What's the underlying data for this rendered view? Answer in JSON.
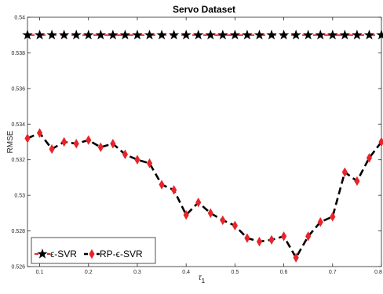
{
  "chart_data": {
    "type": "line",
    "title": "Servo Dataset",
    "xlabel": "τ",
    "xlabel_sub": "1",
    "ylabel": "RMSE",
    "xlim": [
      0.075,
      0.8
    ],
    "ylim": [
      0.526,
      0.54
    ],
    "xticks": [
      0.1,
      0.2,
      0.3,
      0.4,
      0.5,
      0.6,
      0.7,
      0.8
    ],
    "xtick_labels": [
      "0.1",
      "0.2",
      "0.3",
      "0.4",
      "0.5",
      "0.6",
      "0.7",
      "0.8"
    ],
    "yticks": [
      0.526,
      0.528,
      0.53,
      0.532,
      0.534,
      0.536,
      0.538,
      0.54
    ],
    "ytick_labels": [
      "0.526",
      "0.528",
      "0.53",
      "0.532",
      "0.534",
      "0.536",
      "0.538",
      "0.54"
    ],
    "grid": false,
    "legend_position": "bottom-left",
    "x": [
      0.075,
      0.1,
      0.125,
      0.15,
      0.175,
      0.2,
      0.225,
      0.25,
      0.275,
      0.3,
      0.325,
      0.35,
      0.375,
      0.4,
      0.425,
      0.45,
      0.475,
      0.5,
      0.525,
      0.55,
      0.575,
      0.6,
      0.625,
      0.65,
      0.675,
      0.7,
      0.725,
      0.75,
      0.775,
      0.8
    ],
    "series": [
      {
        "name": "ϵ-SVR",
        "marker": "star",
        "color": "#000000",
        "line_color": "#e8242a",
        "values": [
          0.539,
          0.539,
          0.539,
          0.539,
          0.539,
          0.539,
          0.539,
          0.539,
          0.539,
          0.539,
          0.539,
          0.539,
          0.539,
          0.539,
          0.539,
          0.539,
          0.539,
          0.539,
          0.539,
          0.539,
          0.539,
          0.539,
          0.539,
          0.539,
          0.539,
          0.539,
          0.539,
          0.539,
          0.539,
          0.539
        ]
      },
      {
        "name": "RP-ϵ-SVR",
        "marker": "diamond",
        "color": "#e8242a",
        "line_color": "#000000",
        "values": [
          0.5332,
          0.5335,
          0.5326,
          0.533,
          0.5329,
          0.5331,
          0.5327,
          0.5329,
          0.5323,
          0.532,
          0.5318,
          0.5306,
          0.5303,
          0.5289,
          0.5296,
          0.529,
          0.5286,
          0.5283,
          0.5276,
          0.5274,
          0.5275,
          0.5277,
          0.5265,
          0.5277,
          0.5285,
          0.5288,
          0.5313,
          0.5308,
          0.5321,
          0.533
        ]
      }
    ]
  }
}
